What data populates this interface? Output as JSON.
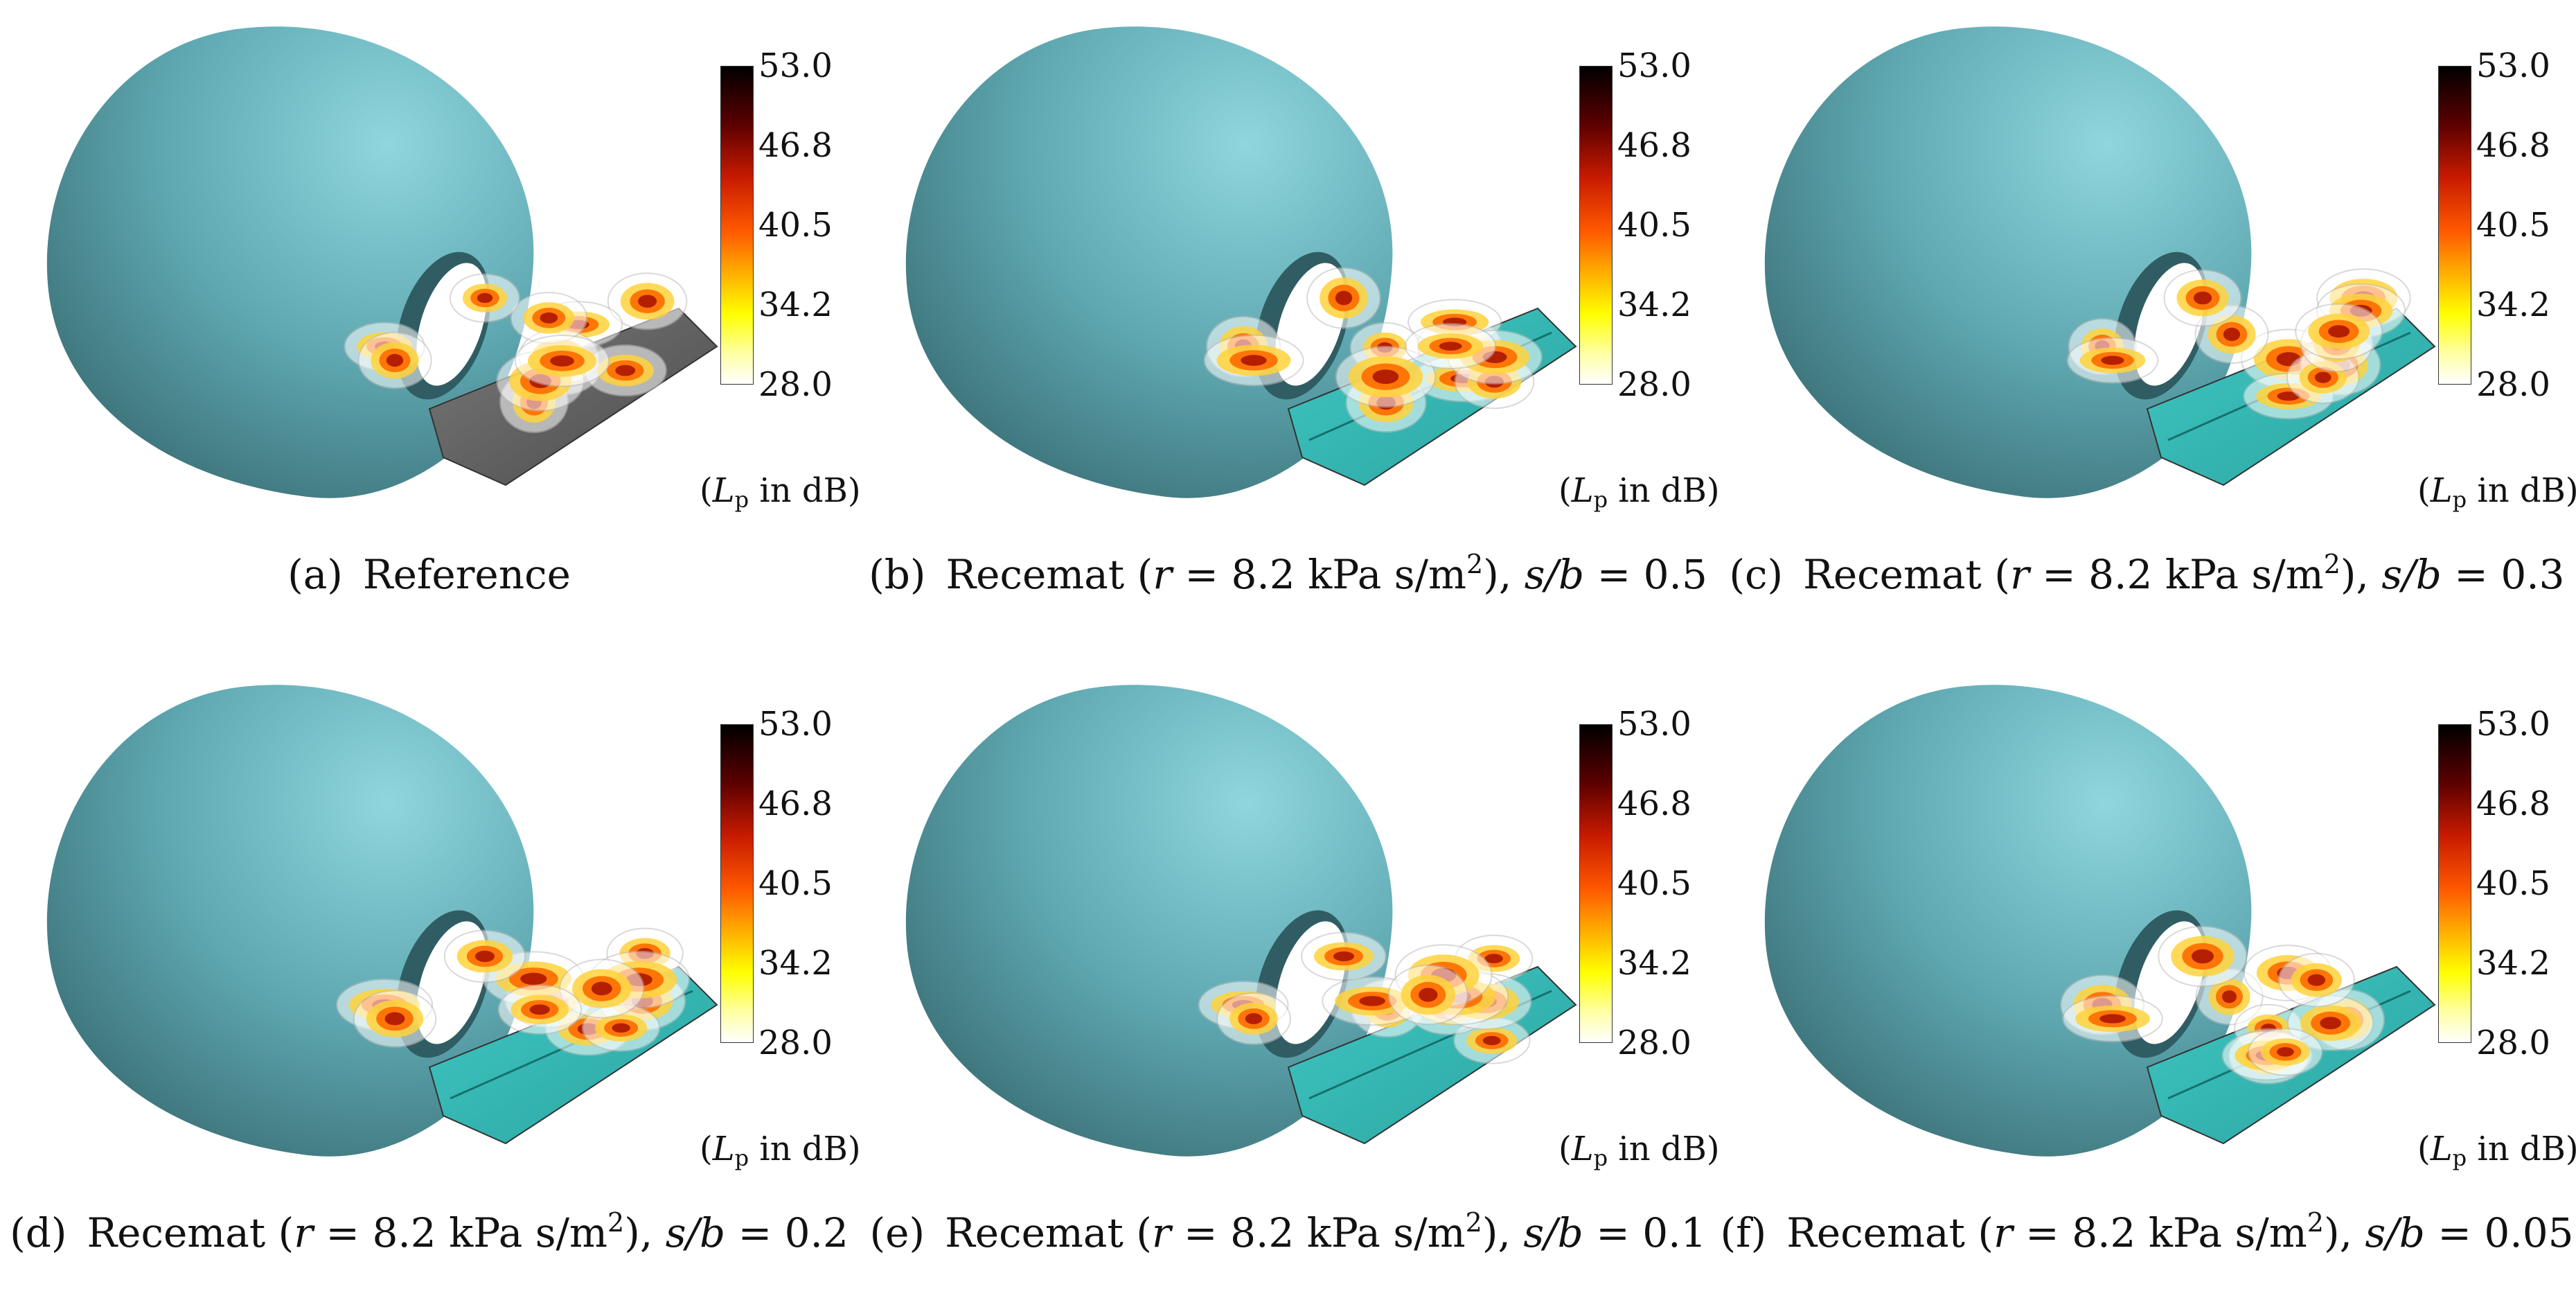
{
  "colorbar": {
    "ticks": [
      "53.0",
      "46.8",
      "40.5",
      "34.2",
      "28.0"
    ],
    "unit_prefix": "(",
    "unit_symbol": "L",
    "unit_subscript": "p",
    "unit_suffix": " in dB)",
    "colors": [
      "#000000",
      "#5a0000",
      "#c81a00",
      "#ff5a00",
      "#ffb400",
      "#ffff00",
      "#ffffff"
    ]
  },
  "colors": {
    "sphere": "#5ea7b0",
    "plate_reference": "#7a7a7a",
    "plate_recemat": "#40c8c4"
  },
  "panels": [
    {
      "id": "a",
      "label": "(a)",
      "name": "Reference",
      "plate": "reference"
    },
    {
      "id": "b",
      "label": "(b)",
      "name": "Recemat",
      "r": "8.2",
      "sb": "0.5",
      "plate": "recemat"
    },
    {
      "id": "c",
      "label": "(c)",
      "name": "Recemat",
      "r": "8.2",
      "sb": "0.3",
      "plate": "recemat"
    },
    {
      "id": "d",
      "label": "(d)",
      "name": "Recemat",
      "r": "8.2",
      "sb": "0.2",
      "plate": "recemat"
    },
    {
      "id": "e",
      "label": "(e)",
      "name": "Recemat",
      "r": "8.2",
      "sb": "0.1",
      "plate": "recemat"
    },
    {
      "id": "f",
      "label": "(f)",
      "name": "Recemat",
      "r": "8.2",
      "sb": "0.05",
      "plate": "recemat"
    }
  ],
  "caption_parts": {
    "r_open": "(",
    "r_symbol": "r",
    "equals": " = ",
    "r_unit": " kPa s/m",
    "r_unit_power": "2",
    "r_close": "), ",
    "sb_symbol": "s/b"
  }
}
